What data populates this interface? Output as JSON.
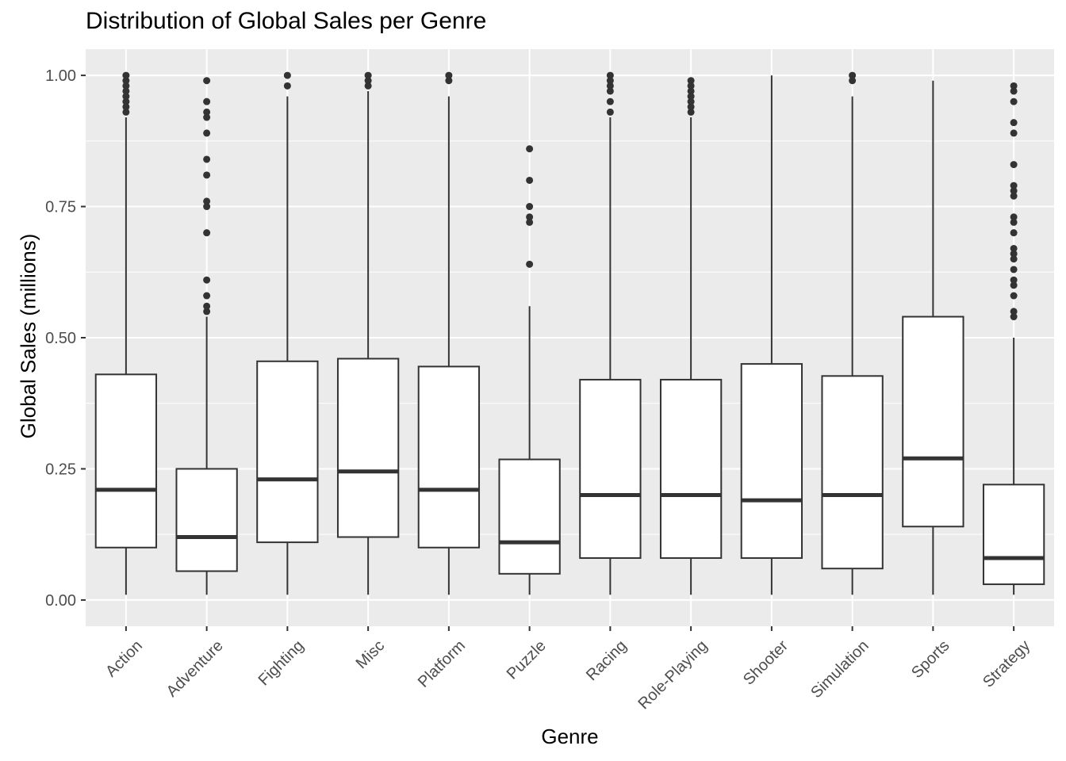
{
  "chart_data": {
    "type": "box",
    "title": "Distribution of Global Sales per Genre",
    "xlabel": "Genre",
    "ylabel": "Global Sales (millions)",
    "ylim": [
      -0.05,
      1.05
    ],
    "yticks": [
      0.0,
      0.25,
      0.5,
      0.75,
      1.0
    ],
    "ytick_labels": [
      "0.00",
      "0.25",
      "0.50",
      "0.75",
      "1.00"
    ],
    "grid": true,
    "colors": {
      "panel": "#ebebeb",
      "grid": "#ffffff",
      "box_fill": "#ffffff",
      "box_line": "#333333",
      "tick_text": "#4d4d4d"
    },
    "categories": [
      "Action",
      "Adventure",
      "Fighting",
      "Misc",
      "Platform",
      "Puzzle",
      "Racing",
      "Role-Playing",
      "Shooter",
      "Simulation",
      "Sports",
      "Strategy"
    ],
    "boxes": [
      {
        "genre": "Action",
        "min": 0.01,
        "q1": 0.1,
        "median": 0.21,
        "q3": 0.43,
        "max": 0.92,
        "outliers": [
          0.93,
          0.94,
          0.95,
          0.96,
          0.97,
          0.98,
          0.99,
          1.0
        ]
      },
      {
        "genre": "Adventure",
        "min": 0.01,
        "q1": 0.055,
        "median": 0.12,
        "q3": 0.25,
        "max": 0.54,
        "outliers": [
          0.55,
          0.56,
          0.58,
          0.61,
          0.7,
          0.75,
          0.76,
          0.81,
          0.84,
          0.89,
          0.92,
          0.93,
          0.95,
          0.99
        ]
      },
      {
        "genre": "Fighting",
        "min": 0.01,
        "q1": 0.11,
        "median": 0.23,
        "q3": 0.455,
        "max": 0.96,
        "outliers": [
          0.98,
          1.0
        ]
      },
      {
        "genre": "Misc",
        "min": 0.01,
        "q1": 0.12,
        "median": 0.245,
        "q3": 0.46,
        "max": 0.97,
        "outliers": [
          0.98,
          0.99,
          1.0
        ]
      },
      {
        "genre": "Platform",
        "min": 0.01,
        "q1": 0.1,
        "median": 0.21,
        "q3": 0.445,
        "max": 0.96,
        "outliers": [
          0.99,
          1.0
        ]
      },
      {
        "genre": "Puzzle",
        "min": 0.01,
        "q1": 0.05,
        "median": 0.11,
        "q3": 0.268,
        "max": 0.56,
        "outliers": [
          0.64,
          0.72,
          0.73,
          0.75,
          0.8,
          0.86
        ]
      },
      {
        "genre": "Racing",
        "min": 0.01,
        "q1": 0.08,
        "median": 0.2,
        "q3": 0.42,
        "max": 0.92,
        "outliers": [
          0.93,
          0.95,
          0.97,
          0.98,
          0.99,
          1.0
        ]
      },
      {
        "genre": "Role-Playing",
        "min": 0.01,
        "q1": 0.08,
        "median": 0.2,
        "q3": 0.42,
        "max": 0.92,
        "outliers": [
          0.93,
          0.94,
          0.95,
          0.96,
          0.97,
          0.98,
          0.99
        ]
      },
      {
        "genre": "Shooter",
        "min": 0.01,
        "q1": 0.08,
        "median": 0.19,
        "q3": 0.45,
        "max": 1.0,
        "outliers": []
      },
      {
        "genre": "Simulation",
        "min": 0.01,
        "q1": 0.06,
        "median": 0.2,
        "q3": 0.427,
        "max": 0.96,
        "outliers": [
          0.99,
          1.0
        ]
      },
      {
        "genre": "Sports",
        "min": 0.01,
        "q1": 0.14,
        "median": 0.27,
        "q3": 0.54,
        "max": 0.99,
        "outliers": []
      },
      {
        "genre": "Strategy",
        "min": 0.01,
        "q1": 0.03,
        "median": 0.08,
        "q3": 0.22,
        "max": 0.5,
        "outliers": [
          0.54,
          0.55,
          0.58,
          0.6,
          0.61,
          0.63,
          0.65,
          0.66,
          0.67,
          0.7,
          0.72,
          0.73,
          0.77,
          0.78,
          0.79,
          0.83,
          0.89,
          0.91,
          0.95,
          0.97,
          0.98
        ]
      }
    ]
  }
}
